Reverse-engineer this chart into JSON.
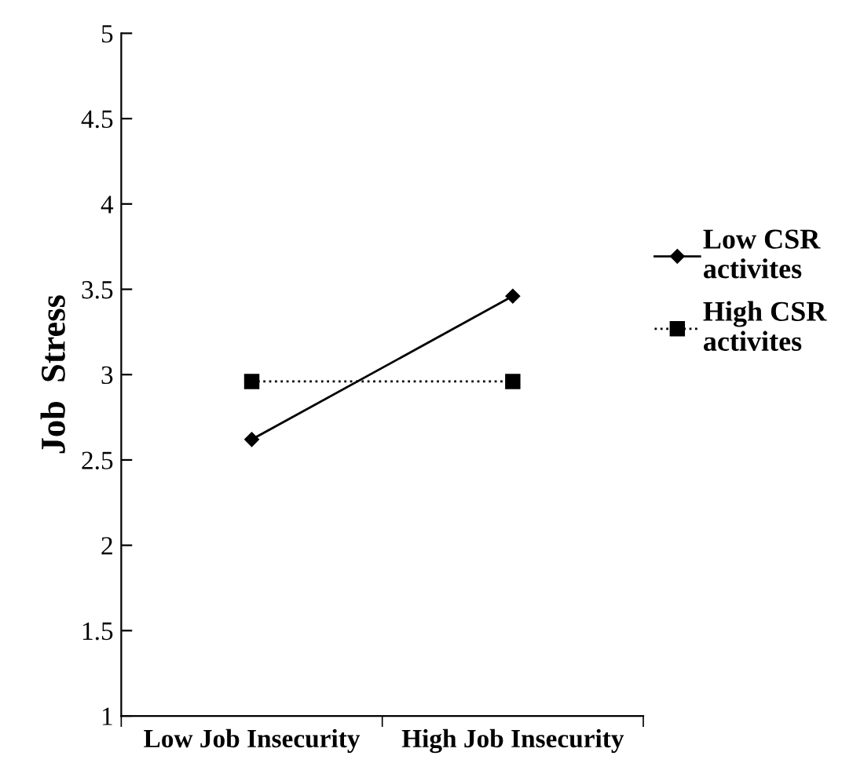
{
  "chart_data": {
    "type": "line",
    "ylabel": "Job  Stress",
    "categories": [
      "Low Job Insecurity",
      "High Job Insecurity"
    ],
    "series": [
      {
        "name": "Low CSR\nactivites",
        "color": "#000000",
        "values": [
          2.62,
          3.46
        ],
        "marker": "diamond",
        "line_style": "solid"
      },
      {
        "name": "High CSR\nactivites",
        "color": "#000000",
        "values": [
          2.96,
          2.96
        ],
        "marker": "square",
        "line_style": "dotted"
      }
    ],
    "ylim": [
      1,
      5
    ],
    "yticks": [
      1,
      1.5,
      2,
      2.5,
      3,
      3.5,
      4,
      4.5,
      5
    ],
    "grid": false,
    "legend": "right"
  }
}
